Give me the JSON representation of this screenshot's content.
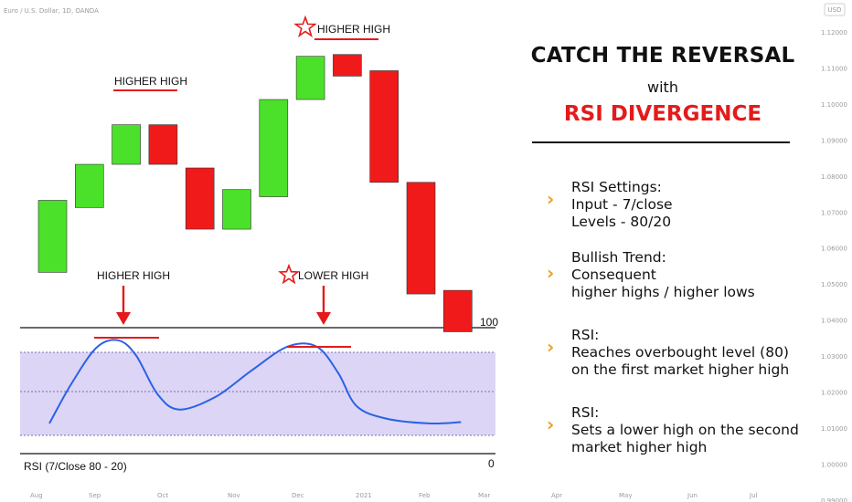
{
  "header": {
    "symbol_text": "Euro / U.S. Dollar, 1D, OANDA",
    "currency_badge": "USD"
  },
  "price_axis": {
    "ticks": [
      "1.12000",
      "1.11000",
      "1.10000",
      "1.09000",
      "1.08000",
      "1.07000",
      "1.06000",
      "1.05000",
      "1.04000",
      "1.03000",
      "1.02000",
      "1.01000",
      "1.00000",
      "0.99000"
    ]
  },
  "time_axis": {
    "labels": [
      "Aug",
      "Sep",
      "Oct",
      "Nov",
      "Dec",
      "2021",
      "Feb",
      "Mar",
      "Apr",
      "May",
      "Jun",
      "Jul"
    ]
  },
  "annotations": {
    "price_hh_1": "HIGHER HIGH",
    "price_hh_2": "HIGHER HIGH",
    "rsi_hh": "HIGHER HIGH",
    "rsi_lh": "LOWER HIGH",
    "rsi_level_top": "100",
    "rsi_level_bottom": "0",
    "rsi_label": "RSI (7/Close 80 - 20)"
  },
  "panel": {
    "title_line1": "CATCH THE REVERSAL",
    "title_line2": "with",
    "title_line3": "RSI DIVERGENCE",
    "items": [
      {
        "lines": [
          "RSI Settings:",
          "Input - 7/close",
          "Levels - 80/20"
        ]
      },
      {
        "lines": [
          "Bullish Trend:",
          "Consequent",
          "higher highs / higher lows"
        ]
      },
      {
        "lines": [
          "RSI:",
          "Reaches overbought level (80)",
          "on the first market higher high"
        ]
      },
      {
        "lines": [
          "RSI:",
          "Sets a lower high on the second",
          "market higher high"
        ]
      }
    ]
  },
  "colors": {
    "bull": "#4be12a",
    "bear": "#f01a1a",
    "rsi_line": "#2a62e6",
    "rsi_band": "#ddd5f5",
    "accent_red": "#e31b1b",
    "chevron": "#f0a020"
  },
  "chart_data": [
    {
      "type": "candlestick",
      "candles": [
        {
          "open": 1.0545,
          "close": 1.0745,
          "dir": "up"
        },
        {
          "open": 1.0725,
          "close": 1.0845,
          "dir": "up"
        },
        {
          "open": 1.0845,
          "close": 1.0955,
          "dir": "up"
        },
        {
          "open": 1.0955,
          "close": 1.0845,
          "dir": "down"
        },
        {
          "open": 1.0835,
          "close": 1.0665,
          "dir": "down"
        },
        {
          "open": 1.0665,
          "close": 1.0775,
          "dir": "up"
        },
        {
          "open": 1.0755,
          "close": 1.1025,
          "dir": "up"
        },
        {
          "open": 1.1025,
          "close": 1.1145,
          "dir": "up"
        },
        {
          "open": 1.115,
          "close": 1.109,
          "dir": "down"
        },
        {
          "open": 1.1105,
          "close": 1.0795,
          "dir": "down"
        },
        {
          "open": 1.0795,
          "close": 1.0485,
          "dir": "down"
        },
        {
          "open": 1.0495,
          "close": 1.038,
          "dir": "down"
        }
      ],
      "ylim": [
        0.99,
        1.125
      ]
    },
    {
      "type": "line",
      "name": "RSI (7/Close 80 - 20)",
      "levels": [
        100,
        80,
        50,
        20,
        0
      ],
      "ylim": [
        0,
        100
      ],
      "points": [
        {
          "i": 0,
          "v": 24
        },
        {
          "i": 0.6,
          "v": 55
        },
        {
          "i": 1.3,
          "v": 84
        },
        {
          "i": 1.9,
          "v": 90
        },
        {
          "i": 2.4,
          "v": 78
        },
        {
          "i": 3.0,
          "v": 47
        },
        {
          "i": 3.6,
          "v": 35
        },
        {
          "i": 4.6,
          "v": 45
        },
        {
          "i": 5.6,
          "v": 66
        },
        {
          "i": 6.6,
          "v": 85
        },
        {
          "i": 7.4,
          "v": 85
        },
        {
          "i": 8.0,
          "v": 64
        },
        {
          "i": 8.5,
          "v": 38
        },
        {
          "i": 9.3,
          "v": 28
        },
        {
          "i": 10.5,
          "v": 24
        },
        {
          "i": 11.4,
          "v": 25
        }
      ]
    }
  ]
}
